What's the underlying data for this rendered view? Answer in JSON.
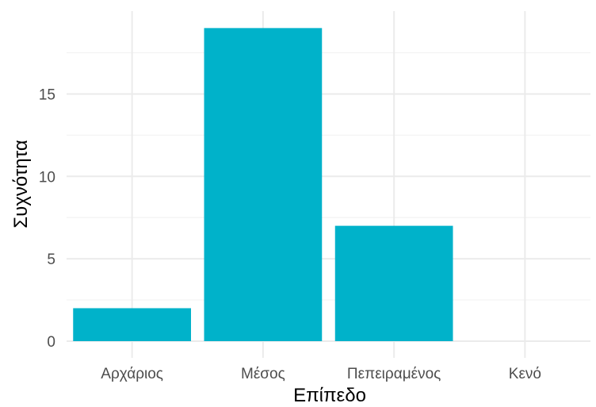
{
  "chart_data": {
    "type": "bar",
    "categories": [
      "Αρχάριος",
      "Μέσος",
      "Πεπειραμένος",
      "Κενό"
    ],
    "values": [
      2,
      19,
      7,
      0
    ],
    "xlabel": "Επίπεδο",
    "ylabel": "Συχνότητα",
    "ylim": [
      0,
      19.95
    ],
    "yticks": [
      0,
      5,
      10,
      15
    ],
    "grid": true,
    "bar_color": "#00B2CA",
    "legend": "none"
  }
}
